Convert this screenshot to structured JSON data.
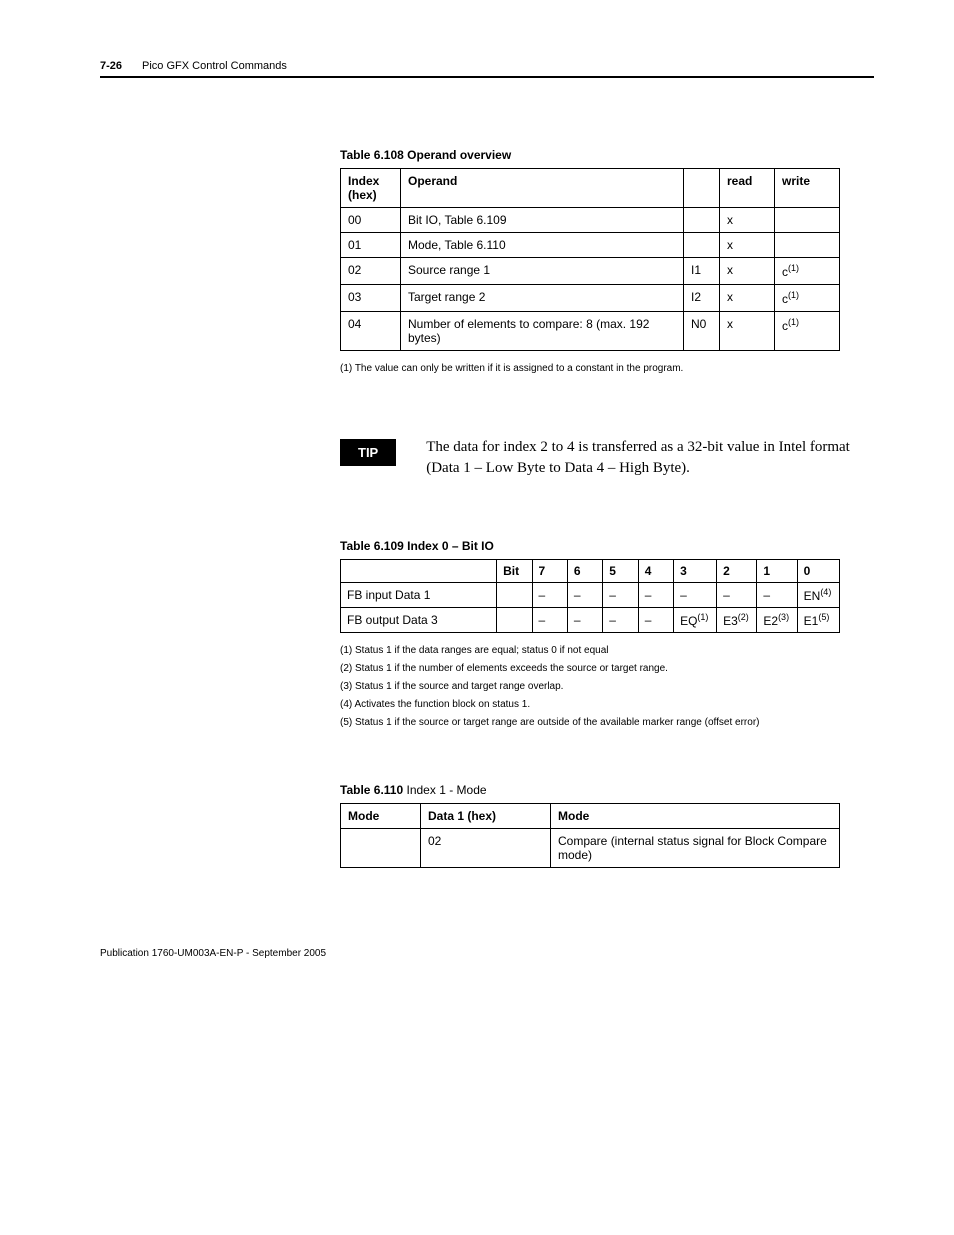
{
  "header": {
    "page_number": "7-26",
    "title": "Pico GFX Control Commands"
  },
  "table_108": {
    "caption": "Table 6.108 Operand overview",
    "columns": [
      "Index (hex)",
      "Operand",
      "",
      "read",
      "write"
    ],
    "rows": [
      {
        "index": "00",
        "operand": "Bit IO, Table 6.109",
        "mid": "",
        "read": "x",
        "write": ""
      },
      {
        "index": "01",
        "operand": "Mode, Table 6.110",
        "mid": "",
        "read": "x",
        "write": ""
      },
      {
        "index": "02",
        "operand": "Source range 1",
        "mid": "I1",
        "read": "x",
        "write_base": "c",
        "write_sup": "(1)"
      },
      {
        "index": "03",
        "operand": "Target range 2",
        "mid": "I2",
        "read": "x",
        "write_base": "c",
        "write_sup": "(1)"
      },
      {
        "index": "04",
        "operand": "Number of elements to compare: 8 (max. 192 bytes)",
        "mid": "N0",
        "read": "x",
        "write_base": "c",
        "write_sup": "(1)"
      }
    ],
    "footnote": "(1)   The value can only be written if it is assigned to a constant in the program."
  },
  "tip": {
    "label": "TIP",
    "text": "The data for index 2 to 4 is transferred as a 32-bit value in Intel format (Data 1 – Low Byte to Data 4 – High Byte)."
  },
  "table_109": {
    "caption": "Table 6.109 Index 0 – Bit IO",
    "head": [
      "",
      "Bit",
      "7",
      "6",
      "5",
      "4",
      "3",
      "2",
      "1",
      "0"
    ],
    "rows": [
      {
        "label": "FB input Data 1",
        "bit": "",
        "cells": [
          {
            "text": "–"
          },
          {
            "text": "–"
          },
          {
            "text": "–"
          },
          {
            "text": "–"
          },
          {
            "text": "–"
          },
          {
            "text": "–"
          },
          {
            "text": "–"
          },
          {
            "base": "EN",
            "sup": "(4)"
          }
        ]
      },
      {
        "label": "FB output Data 3",
        "bit": "",
        "cells": [
          {
            "text": "–"
          },
          {
            "text": "–"
          },
          {
            "text": "–"
          },
          {
            "text": "–"
          },
          {
            "base": "EQ",
            "sup": "(1)"
          },
          {
            "base": "E3",
            "sup": "(2)"
          },
          {
            "base": "E2",
            "sup": "(3)"
          },
          {
            "base": "E1",
            "sup": "(5)"
          }
        ]
      }
    ],
    "footnotes": [
      "(1)   Status 1 if the data ranges are equal; status 0 if not equal",
      "(2)   Status 1 if the number of elements exceeds the source or target range.",
      "(3)   Status 1 if the source and target range overlap.",
      "(4)   Activates the function block on status 1.",
      "(5)   Status 1 if the source or target range are outside of the available marker range (offset error)"
    ]
  },
  "table_110": {
    "caption_bold": "Table 6.110 ",
    "caption_light": "Index 1 - Mode",
    "columns": [
      "Mode",
      "Data 1 (hex)",
      "Mode"
    ],
    "row": {
      "mode": "",
      "data1": "02",
      "desc": "Compare (internal status signal for Block Compare mode)"
    }
  },
  "footer": {
    "publication": "Publication 1760-UM003A-EN-P - September 2005"
  }
}
